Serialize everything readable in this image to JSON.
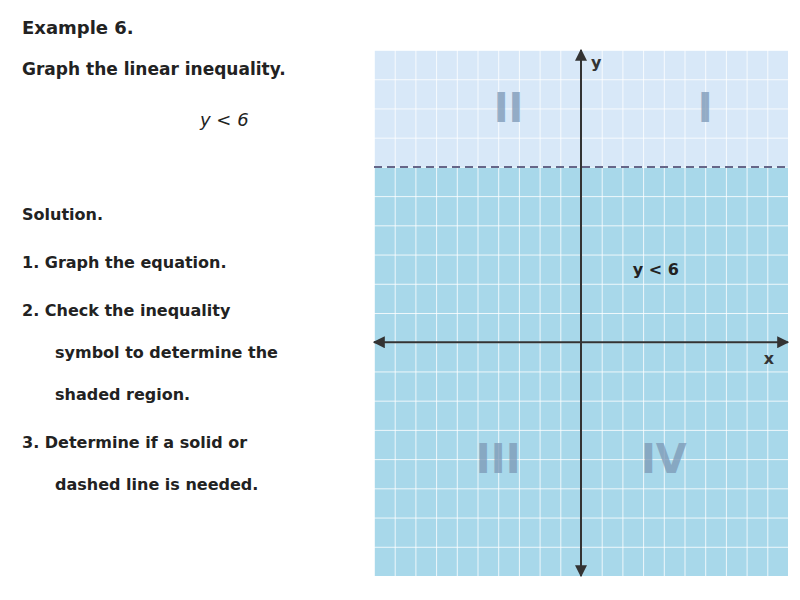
{
  "chart_data": {
    "type": "line",
    "title": "Example 6.",
    "subtitle": "Graph the linear inequality.",
    "panel_text": [
      "y < 6",
      "Solution.",
      "1. Graph the equation.",
      "2. Check the inequality",
      "symbol to determine the",
      "shaded region.",
      "3. Determine if a solid or",
      "dashed line is needed."
    ],
    "x_label": "x",
    "y_label": "y",
    "x": [
      -10,
      10
    ],
    "series": [
      {
        "type": "area",
        "color": "#A8D8EA",
        "values": [
          6,
          6
        ],
        "lower": [
          -8,
          -8
        ]
      },
      {
        "type": "area",
        "color": "#D8E8F8",
        "values": [
          10,
          10
        ],
        "lower": [
          6,
          6
        ]
      },
      {
        "type": "line",
        "color": "#666688",
        "line_style": "dashed",
        "values": [
          6,
          6
        ]
      }
    ],
    "annotations": [
      {
        "text": "II",
        "x": -3.5,
        "y": 8
      },
      {
        "text": "I",
        "x": 6,
        "y": 8
      },
      {
        "text": "III",
        "x": -4,
        "y": -4
      },
      {
        "text": "IV",
        "x": 4,
        "y": -4
      },
      {
        "text": "y < 6",
        "x": 2.5,
        "y": 2.5
      }
    ],
    "xlim": [
      -10,
      10
    ],
    "ylim": [
      -8,
      10
    ],
    "xticks": [
      -10,
      -9,
      -8,
      -7,
      -6,
      -5,
      -4,
      -3,
      -2,
      -1,
      0,
      1,
      2,
      3,
      4,
      5,
      6,
      7,
      8,
      9,
      10
    ],
    "yticks": [
      -8,
      -7,
      -6,
      -5,
      -4,
      -3,
      -2,
      -1,
      0,
      1,
      2,
      3,
      4,
      5,
      6,
      7,
      8,
      9,
      10
    ],
    "grid": true,
    "tick_labels": false
  }
}
